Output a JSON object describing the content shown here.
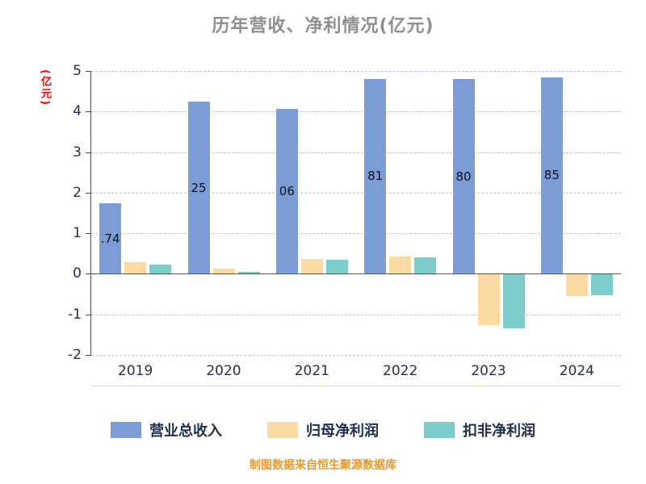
{
  "title": "历年营收、净利情况(亿元)",
  "y_axis_unit": "(亿元)",
  "footer_note": "制图数据来自恒生聚源数据库",
  "colors": {
    "revenue": "#7c9cd5",
    "net_profit": "#fad9a2",
    "deducted_profit": "#7ecdcd",
    "title_text": "#8f8f8f",
    "axis_text": "#1d2f4f",
    "unit_label": "#ff0000",
    "footer_text": "#e8982c",
    "gridline": "#afc6df",
    "zero_line": "#555555"
  },
  "chart_data": {
    "type": "bar",
    "categories": [
      "2019",
      "2020",
      "2021",
      "2022",
      "2023",
      "2024"
    ],
    "series": [
      {
        "name": "营业总收入",
        "color_key": "revenue",
        "values": [
          1.74,
          4.25,
          4.06,
          4.81,
          4.8,
          4.85
        ],
        "bar_labels": [
          ".74",
          "25",
          "06",
          "81",
          "80",
          "85"
        ]
      },
      {
        "name": "归母净利润",
        "color_key": "net_profit",
        "values": [
          0.28,
          0.12,
          0.36,
          0.43,
          -1.25,
          -0.52
        ]
      },
      {
        "name": "扣非净利润",
        "color_key": "deducted_profit",
        "values": [
          0.22,
          0.05,
          0.34,
          0.41,
          -1.32,
          -0.5
        ]
      }
    ],
    "ylim": [
      -2,
      5
    ],
    "yticks": [
      5,
      4,
      3,
      2,
      1,
      0,
      -1,
      -2
    ],
    "grid": true,
    "legend_position": "bottom",
    "title": "历年营收、净利情况(亿元)",
    "ylabel": "(亿元)"
  },
  "legend": {
    "items": [
      {
        "label": "营业总收入"
      },
      {
        "label": "归母净利润"
      },
      {
        "label": "扣非净利润"
      }
    ]
  }
}
